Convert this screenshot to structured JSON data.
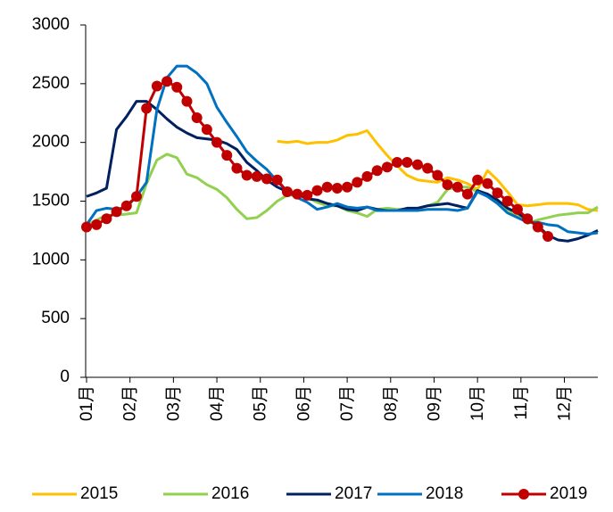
{
  "chart_data": {
    "type": "line",
    "x": [
      1,
      1.23,
      1.46,
      1.69,
      1.92,
      2.15,
      2.38,
      2.62,
      2.85,
      3.08,
      3.31,
      3.54,
      3.77,
      4,
      4.23,
      4.46,
      4.69,
      4.92,
      5.15,
      5.39,
      5.62,
      5.85,
      6.08,
      6.31,
      6.54,
      6.77,
      7,
      7.23,
      7.46,
      7.69,
      7.92,
      8.15,
      8.38,
      8.62,
      8.85,
      9.08,
      9.31,
      9.54,
      9.77,
      10,
      10.23,
      10.46,
      10.69,
      10.92,
      11.15,
      11.39,
      11.62,
      11.85,
      12.08,
      12.31,
      12.54,
      12.77
    ],
    "xlim": [
      1,
      12.77
    ],
    "xticks": [
      {
        "value": 1,
        "label": "01月"
      },
      {
        "value": 2,
        "label": "02月"
      },
      {
        "value": 3,
        "label": "03月"
      },
      {
        "value": 4,
        "label": "04月"
      },
      {
        "value": 5,
        "label": "05月"
      },
      {
        "value": 6,
        "label": "06月"
      },
      {
        "value": 7,
        "label": "07月"
      },
      {
        "value": 8,
        "label": "08月"
      },
      {
        "value": 9,
        "label": "09月"
      },
      {
        "value": 10,
        "label": "10月"
      },
      {
        "value": 11,
        "label": "11月"
      },
      {
        "value": 12,
        "label": "12月"
      }
    ],
    "ylim": [
      0,
      3000
    ],
    "yticks": [
      0,
      500,
      1000,
      1500,
      2000,
      2500,
      3000
    ],
    "grid": false,
    "legend": "bottom",
    "series": [
      {
        "name": "2015",
        "color": "#ffc000",
        "values": [
          null,
          null,
          null,
          null,
          null,
          null,
          null,
          null,
          null,
          null,
          null,
          null,
          null,
          null,
          null,
          null,
          null,
          null,
          null,
          2010,
          2000,
          2010,
          1990,
          2000,
          2000,
          2020,
          2060,
          2070,
          2100,
          1990,
          1890,
          1800,
          1720,
          1680,
          1670,
          1660,
          1700,
          1680,
          1650,
          1600,
          1760,
          1680,
          1580,
          1470,
          1460,
          1470,
          1480,
          1480,
          1480,
          1470,
          1430,
          1420
        ]
      },
      {
        "name": "2016",
        "color": "#92d050",
        "values": [
          1300,
          1340,
          1380,
          1380,
          1390,
          1400,
          1650,
          1850,
          1900,
          1870,
          1730,
          1700,
          1640,
          1600,
          1530,
          1430,
          1350,
          1360,
          1420,
          1500,
          1550,
          1550,
          1530,
          1490,
          1460,
          1460,
          1420,
          1400,
          1370,
          1430,
          1440,
          1430,
          1430,
          1440,
          1460,
          1490,
          1600,
          1620,
          1620,
          1580,
          1550,
          1490,
          1430,
          1380,
          1310,
          1340,
          1360,
          1380,
          1390,
          1400,
          1400,
          1450
        ]
      },
      {
        "name": "2017",
        "color": "#002060",
        "values": [
          1540,
          1570,
          1610,
          2110,
          2220,
          2350,
          2350,
          2280,
          2200,
          2130,
          2080,
          2040,
          2030,
          2020,
          1990,
          1940,
          1830,
          1760,
          1680,
          1620,
          1580,
          1560,
          1520,
          1510,
          1480,
          1460,
          1430,
          1420,
          1450,
          1430,
          1420,
          1420,
          1440,
          1440,
          1460,
          1470,
          1480,
          1460,
          1440,
          1590,
          1560,
          1510,
          1440,
          1400,
          1340,
          1290,
          1210,
          1170,
          1160,
          1180,
          1210,
          1250
        ]
      },
      {
        "name": "2018",
        "color": "#0070c0",
        "values": [
          1300,
          1420,
          1440,
          1430,
          1450,
          1540,
          1660,
          2280,
          2550,
          2650,
          2650,
          2590,
          2500,
          2300,
          2170,
          2050,
          1920,
          1840,
          1770,
          1670,
          1580,
          1530,
          1490,
          1430,
          1450,
          1480,
          1450,
          1440,
          1450,
          1420,
          1420,
          1420,
          1420,
          1420,
          1430,
          1430,
          1430,
          1420,
          1440,
          1580,
          1540,
          1480,
          1400,
          1360,
          1320,
          1320,
          1300,
          1290,
          1240,
          1230,
          1220,
          1230
        ]
      },
      {
        "name": "2019",
        "color": "#c00000",
        "marker": true,
        "values": [
          1280,
          1300,
          1350,
          1410,
          1460,
          1540,
          2290,
          2480,
          2520,
          2470,
          2350,
          2210,
          2110,
          2000,
          1890,
          1780,
          1720,
          1710,
          1690,
          1680,
          1580,
          1560,
          1550,
          1590,
          1620,
          1610,
          1620,
          1660,
          1710,
          1760,
          1790,
          1830,
          1830,
          1810,
          1780,
          1720,
          1640,
          1620,
          1560,
          1680,
          1650,
          1570,
          1500,
          1430,
          1350,
          1280,
          1200,
          null,
          null,
          null,
          null,
          null
        ]
      }
    ]
  }
}
